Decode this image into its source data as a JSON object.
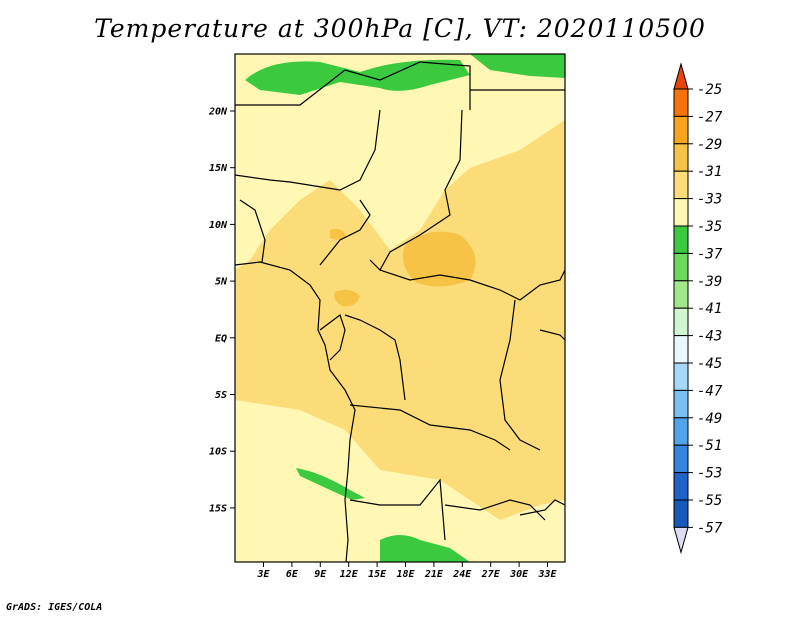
{
  "title": "Temperature at 300hPa [C], VT: 2020110500",
  "credit": "GrADS: IGES/COLA",
  "lat_labels": [
    "20N",
    "15N",
    "10N",
    "5N",
    "EQ",
    "5S",
    "10S",
    "15S"
  ],
  "lon_labels": [
    "3E",
    "6E",
    "9E",
    "12E",
    "15E",
    "18E",
    "21E",
    "24E",
    "27E",
    "30E",
    "33E"
  ],
  "colorbar": {
    "labels": [
      "-25",
      "-27",
      "-29",
      "-31",
      "-33",
      "-35",
      "-37",
      "-39",
      "-41",
      "-43",
      "-45",
      "-47",
      "-49",
      "-51",
      "-53",
      "-55",
      "-57"
    ],
    "colors": [
      "#e8450a",
      "#f5730a",
      "#f7a51c",
      "#f7c347",
      "#fbdc78",
      "#fff7b3",
      "#3bc940",
      "#6dd95c",
      "#a2e68a",
      "#d1f5cf",
      "#e8f8fe",
      "#a7d8f7",
      "#79bff2",
      "#51a4ea",
      "#3484e0",
      "#1f62c8",
      "#155ab8",
      "#0c2d8a"
    ]
  }
}
